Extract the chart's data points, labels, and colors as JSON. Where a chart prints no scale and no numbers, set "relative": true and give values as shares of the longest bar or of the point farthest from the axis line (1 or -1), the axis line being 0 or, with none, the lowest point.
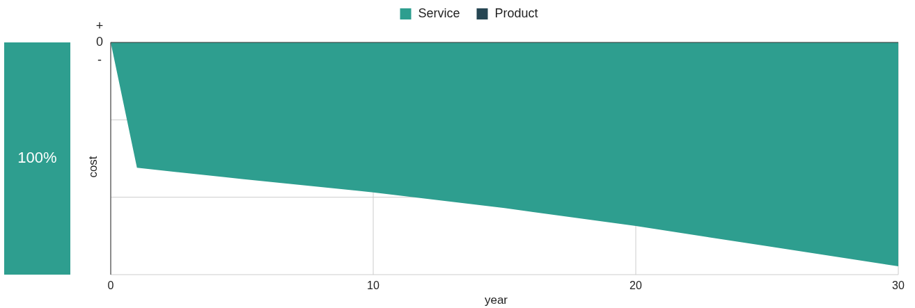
{
  "chart_data": [
    {
      "type": "other",
      "categories": [
        null
      ],
      "values": [
        100
      ],
      "value_labels": [
        "100%"
      ],
      "colors": [
        "#2e9e8f"
      ]
    },
    {
      "type": "area",
      "relative": true,
      "xlabel": "year",
      "ylabel": "cost",
      "x": [
        0,
        1,
        5,
        10,
        15,
        20,
        25,
        30
      ],
      "xlim": [
        0,
        30
      ],
      "xticks": [
        0,
        10,
        20,
        30
      ],
      "grid": true,
      "legend": "top",
      "annotations": [
        "+",
        "0",
        "-"
      ],
      "series": [
        {
          "name": "Service",
          "color": "#2e9e8f",
          "values": [
            0,
            -0.56,
            -0.61,
            -0.67,
            -0.74,
            -0.82,
            -0.91,
            -1
          ]
        },
        {
          "name": "Product",
          "color": "#264653",
          "values": [
            null,
            null,
            null,
            null,
            null,
            null,
            null,
            null
          ]
        }
      ]
    }
  ]
}
